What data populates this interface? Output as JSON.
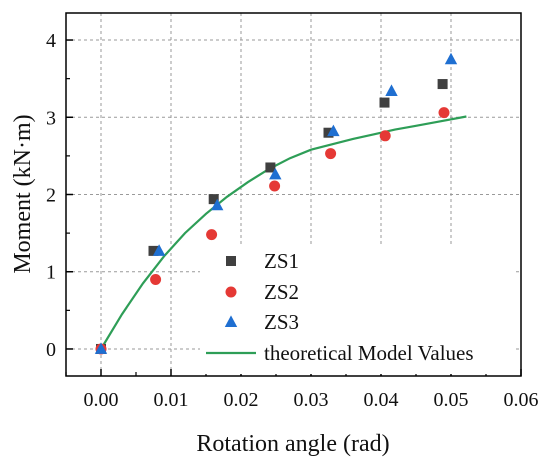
{
  "chart_data": {
    "type": "scatter",
    "xlabel": "Rotation angle (rad)",
    "ylabel": "Moment (kN·m)",
    "xlim": [
      -0.005,
      0.06
    ],
    "ylim": [
      -0.35,
      4.35
    ],
    "xticks": [
      0.0,
      0.01,
      0.02,
      0.03,
      0.04,
      0.05,
      0.06
    ],
    "xtick_labels": [
      "0.00",
      "0.01",
      "0.02",
      "0.03",
      "0.04",
      "0.05",
      "0.06"
    ],
    "yticks": [
      0,
      1,
      2,
      3,
      4
    ],
    "ytick_labels": [
      "0",
      "1",
      "2",
      "3",
      "4"
    ],
    "grid": true,
    "legend_position": "bottom-right",
    "series": [
      {
        "name": "ZS1",
        "marker": "square",
        "color": "#404040",
        "points": [
          [
            0.0,
            0.0
          ],
          [
            0.0075,
            1.27
          ],
          [
            0.0161,
            1.94
          ],
          [
            0.0242,
            2.35
          ],
          [
            0.0325,
            2.8
          ],
          [
            0.0405,
            3.19
          ],
          [
            0.0488,
            3.43
          ]
        ]
      },
      {
        "name": "ZS2",
        "marker": "circle",
        "color": "#e53935",
        "points": [
          [
            0.0,
            0.0
          ],
          [
            0.0078,
            0.9
          ],
          [
            0.0158,
            1.48
          ],
          [
            0.0248,
            2.11
          ],
          [
            0.0328,
            2.53
          ],
          [
            0.0406,
            2.76
          ],
          [
            0.049,
            3.06
          ]
        ]
      },
      {
        "name": "ZS3",
        "marker": "triangle",
        "color": "#1f6fd1",
        "points": [
          [
            0.0,
            0.0
          ],
          [
            0.0083,
            1.27
          ],
          [
            0.0166,
            1.86
          ],
          [
            0.0249,
            2.26
          ],
          [
            0.0332,
            2.82
          ],
          [
            0.0415,
            3.34
          ],
          [
            0.05,
            3.75
          ]
        ]
      },
      {
        "name": "theoretical Model Values",
        "marker": "line",
        "color": "#2e9e57",
        "points": [
          [
            0.0,
            0.0
          ],
          [
            0.003,
            0.45
          ],
          [
            0.006,
            0.85
          ],
          [
            0.009,
            1.2
          ],
          [
            0.012,
            1.5
          ],
          [
            0.015,
            1.75
          ],
          [
            0.018,
            1.97
          ],
          [
            0.021,
            2.16
          ],
          [
            0.024,
            2.33
          ],
          [
            0.027,
            2.47
          ],
          [
            0.03,
            2.58
          ],
          [
            0.033,
            2.65
          ],
          [
            0.036,
            2.72
          ],
          [
            0.039,
            2.78
          ],
          [
            0.042,
            2.84
          ],
          [
            0.045,
            2.89
          ],
          [
            0.048,
            2.94
          ],
          [
            0.0522,
            3.01
          ]
        ]
      }
    ]
  }
}
